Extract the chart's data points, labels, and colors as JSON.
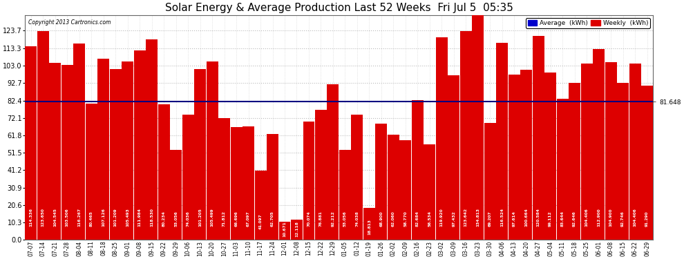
{
  "title": "Solar Energy & Average Production Last 52 Weeks  Fri Jul 5  05:35",
  "copyright": "Copyright 2013 Cartronics.com",
  "bar_color": "#dd0000",
  "average_line_color": "#000080",
  "average_value": 81.648,
  "ylim": [
    0,
    133
  ],
  "yticks": [
    0.0,
    10.3,
    20.6,
    30.9,
    41.2,
    51.5,
    61.8,
    72.1,
    82.4,
    92.7,
    103.0,
    113.3,
    123.7
  ],
  "background_color": "#ffffff",
  "plot_bg_color": "#ffffff",
  "grid_color": "#bbbbbb",
  "legend_average_color": "#0000cc",
  "legend_weekly_color": "#dd0000",
  "labels": [
    "07-07",
    "07-14",
    "07-21",
    "07-28",
    "08-04",
    "08-11",
    "08-18",
    "08-25",
    "09-01",
    "09-08",
    "09-15",
    "09-22",
    "09-29",
    "10-06",
    "10-13",
    "10-20",
    "10-27",
    "11-03",
    "11-10",
    "11-17",
    "11-24",
    "12-01",
    "12-08",
    "12-15",
    "12-22",
    "12-29",
    "01-05",
    "01-12",
    "01-19",
    "01-26",
    "02-02",
    "02-09",
    "02-16",
    "02-23",
    "03-02",
    "03-09",
    "03-16",
    "03-23",
    "03-30",
    "04-06",
    "04-13",
    "04-20",
    "04-27",
    "05-04",
    "05-11",
    "05-18",
    "05-25",
    "06-01",
    "06-08",
    "06-15",
    "06-22",
    "06-29"
  ],
  "values": [
    114.336,
    123.65,
    104.545,
    103.506,
    116.267,
    80.465,
    107.126,
    101.209,
    105.493,
    111.984,
    118.53,
    80.234,
    53.056,
    74.036,
    101.205,
    105.499,
    71.812,
    66.696,
    67.097,
    41.097,
    62.705,
    10.671,
    12.118,
    70.074,
    76.881,
    92.212,
    53.056,
    74.038,
    18.813,
    68.9,
    62.06,
    58.77,
    82.684,
    56.534,
    119.92,
    97.432,
    123.642,
    134.813,
    69.207,
    116.524,
    97.614,
    100.664,
    120.584,
    99.112,
    83.644,
    92.646,
    104.406,
    112.9,
    104.9,
    92.746,
    104.406,
    91.29
  ],
  "figsize": [
    9.9,
    3.75
  ],
  "dpi": 100,
  "title_fontsize": 11,
  "bar_label_fontsize": 4.2,
  "ytick_fontsize": 7,
  "xtick_fontsize": 5.5
}
